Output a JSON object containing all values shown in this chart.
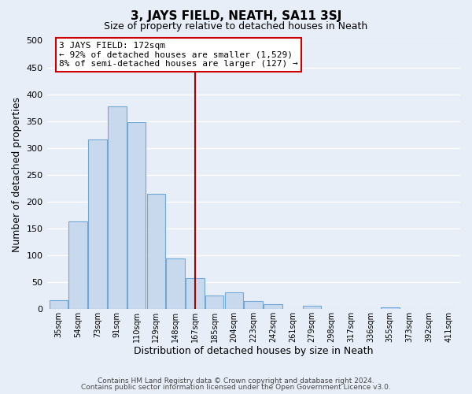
{
  "title": "3, JAYS FIELD, NEATH, SA11 3SJ",
  "subtitle": "Size of property relative to detached houses in Neath",
  "xlabel": "Distribution of detached houses by size in Neath",
  "ylabel": "Number of detached properties",
  "categories": [
    "35sqm",
    "54sqm",
    "73sqm",
    "91sqm",
    "110sqm",
    "129sqm",
    "148sqm",
    "167sqm",
    "185sqm",
    "204sqm",
    "223sqm",
    "242sqm",
    "261sqm",
    "279sqm",
    "298sqm",
    "317sqm",
    "336sqm",
    "355sqm",
    "373sqm",
    "392sqm",
    "411sqm"
  ],
  "values": [
    16,
    163,
    315,
    377,
    348,
    214,
    93,
    57,
    25,
    30,
    15,
    8,
    0,
    6,
    0,
    0,
    0,
    2,
    0,
    0,
    0
  ],
  "bar_color": "#c8d9ee",
  "bar_edge_color": "#6fa8d4",
  "highlight_index": 7,
  "highlight_line_color": "#aa0000",
  "ylim": [
    0,
    500
  ],
  "yticks": [
    0,
    50,
    100,
    150,
    200,
    250,
    300,
    350,
    400,
    450,
    500
  ],
  "annotation_title": "3 JAYS FIELD: 172sqm",
  "annotation_line1": "← 92% of detached houses are smaller (1,529)",
  "annotation_line2": "8% of semi-detached houses are larger (127) →",
  "annotation_box_color": "#ffffff",
  "annotation_box_edge": "#cc0000",
  "footer_line1": "Contains HM Land Registry data © Crown copyright and database right 2024.",
  "footer_line2": "Contains public sector information licensed under the Open Government Licence v3.0.",
  "background_color": "#e8eef8",
  "grid_color": "#ffffff",
  "plot_bg_color": "#e8eef8"
}
